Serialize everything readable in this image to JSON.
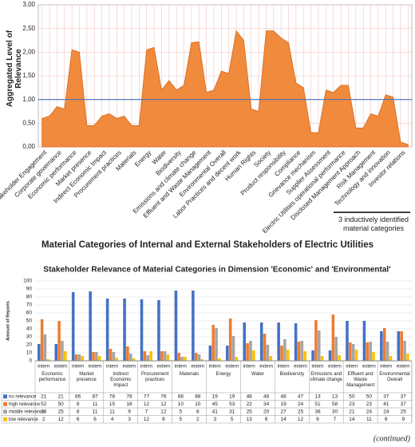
{
  "chart_data": [
    {
      "type": "area",
      "ylabel": "Aggregated Level of Relevance",
      "caption": "Material Categories of Internal and External Stakeholders of Electric Utilities",
      "annotation": "3 inductively identified material categories",
      "categories": [
        "Stakeholder Engagement",
        null,
        "Corporate governance",
        null,
        "Economic performance",
        null,
        "Market presence",
        null,
        "Indirect Economic Impact",
        null,
        "Procurement practices",
        null,
        "Materials",
        null,
        "Energy",
        null,
        "Water",
        null,
        "Biodiversity",
        null,
        "Emissions and climate change",
        null,
        "Effluent and Waste Management",
        null,
        "Environmental Overall",
        null,
        "Labor Practices and decent work",
        null,
        "Human Rights",
        null,
        "Society",
        null,
        "Product responsibility",
        null,
        "Compliance",
        null,
        "Grievance mechanism",
        null,
        "Supplier Assessment",
        null,
        "Electric Utilities operational performance",
        null,
        "Disclosed Management Approach",
        null,
        "Risk Management",
        null,
        "Technology and innovation",
        null,
        "Investor relations",
        null
      ],
      "values": [
        0.6,
        0.65,
        0.85,
        0.8,
        2.05,
        2.0,
        0.45,
        0.45,
        0.65,
        0.7,
        0.6,
        0.65,
        0.45,
        0.45,
        2.05,
        2.1,
        1.2,
        1.4,
        1.2,
        1.3,
        2.2,
        2.22,
        1.15,
        1.2,
        1.6,
        1.55,
        2.45,
        2.25,
        0.8,
        0.75,
        2.45,
        2.45,
        2.3,
        2.2,
        1.35,
        1.25,
        0.3,
        0.3,
        1.2,
        1.15,
        1.3,
        1.3,
        0.4,
        0.4,
        0.7,
        0.65,
        1.1,
        1.05,
        0.1,
        0.05
      ],
      "color": "#f08a3c",
      "ylim": [
        0,
        3
      ],
      "yticks": [
        {
          "value": 0,
          "label": "0,00"
        },
        {
          "value": 0.5,
          "label": "0,50"
        },
        {
          "value": 1,
          "label": "1,00"
        },
        {
          "value": 1.5,
          "label": "1,50"
        },
        {
          "value": 2,
          "label": "2,00"
        },
        {
          "value": 2.5,
          "label": "2,50"
        },
        {
          "value": 3,
          "label": "3,00"
        }
      ],
      "reference_line": 1,
      "grid": true
    },
    {
      "type": "bar",
      "title": "Stakeholder Relevance of Material Categories in Dimension 'Economic' and 'Environmental'",
      "ylabel": "Amount of Reports",
      "groups": [
        "Economic performance",
        "Market presence",
        "Indirect Economic Impact",
        "Procurement practices",
        "Materials",
        "Energy",
        "Water",
        "Biodiversity",
        "Emissions and climate change",
        "Effluent and Waste Management",
        "Environmental Overall"
      ],
      "categories": [
        "intern",
        "extern",
        "intern",
        "extern",
        "intern",
        "extern",
        "intern",
        "extern",
        "intern",
        "extern",
        "intern",
        "extern",
        "intern",
        "extern",
        "intern",
        "extern",
        "intern",
        "extern",
        "intern",
        "extern",
        "intern",
        "extern"
      ],
      "series": [
        {
          "name": "no relevance",
          "color": "#4472c4",
          "values": [
            21,
            21,
            86,
            87,
            78,
            78,
            77,
            76,
            88,
            88,
            19,
            19,
            48,
            48,
            48,
            47,
            13,
            13,
            50,
            50,
            37,
            37
          ]
        },
        {
          "name": "high relevance",
          "color": "#ed7d31",
          "values": [
            52,
            50,
            8,
            11,
            15,
            18,
            12,
            12,
            10,
            10,
            45,
            53,
            22,
            34,
            19,
            24,
            51,
            58,
            23,
            23,
            41,
            37
          ]
        },
        {
          "name": "middle relevance",
          "color": "#a5a5a5",
          "values": [
            33,
            25,
            8,
            11,
            11,
            9,
            7,
            12,
            5,
            8,
            41,
            31,
            25,
            20,
            27,
            25,
            38,
            30,
            21,
            24,
            24,
            25
          ]
        },
        {
          "name": "low relevance",
          "color": "#ffc000",
          "values": [
            2,
            12,
            6,
            6,
            4,
            3,
            12,
            8,
            5,
            2,
            3,
            5,
            13,
            6,
            14,
            12,
            6,
            7,
            14,
            11,
            6,
            9
          ]
        }
      ],
      "ylim": [
        0,
        100
      ],
      "yticks": [
        0,
        10,
        20,
        30,
        40,
        50,
        60,
        70,
        80,
        90,
        100
      ],
      "grid": true
    },
    {
      "type": "note",
      "text": "(continued)"
    }
  ]
}
